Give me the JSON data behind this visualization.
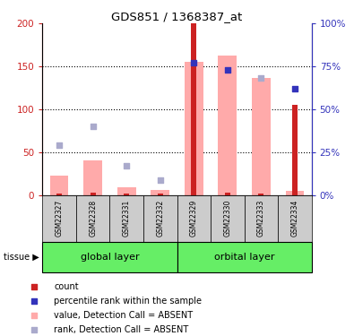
{
  "title": "GDS851 / 1368387_at",
  "samples": [
    "GSM22327",
    "GSM22328",
    "GSM22331",
    "GSM22332",
    "GSM22329",
    "GSM22330",
    "GSM22333",
    "GSM22334"
  ],
  "groups": [
    {
      "name": "global layer",
      "indices": [
        0,
        1,
        2,
        3
      ]
    },
    {
      "name": "orbital layer",
      "indices": [
        4,
        5,
        6,
        7
      ]
    }
  ],
  "red_bars": [
    2,
    3,
    2,
    2,
    200,
    3,
    2,
    105
  ],
  "pink_bars": [
    22,
    40,
    9,
    6,
    155,
    163,
    136,
    5
  ],
  "blue_squares_right": [
    null,
    null,
    null,
    null,
    77,
    73,
    null,
    62
  ],
  "light_blue_squares_left": [
    58,
    80,
    34,
    17,
    null,
    null,
    136,
    null
  ],
  "ylim_left": [
    0,
    200
  ],
  "ylim_right": [
    0,
    100
  ],
  "yticks_left": [
    0,
    50,
    100,
    150,
    200
  ],
  "yticks_right": [
    0,
    25,
    50,
    75,
    100
  ],
  "ytick_labels_left": [
    "0",
    "50",
    "100",
    "150",
    "200"
  ],
  "ytick_labels_right": [
    "0%",
    "25%",
    "50%",
    "75%",
    "100%"
  ],
  "red_color": "#cc2222",
  "pink_color": "#ffaaaa",
  "blue_color": "#3333bb",
  "light_blue_color": "#aaaacc",
  "group_bg_color": "#66ee66",
  "sample_bg_color": "#cccccc",
  "legend_items": [
    {
      "color": "#cc2222",
      "label": "count"
    },
    {
      "color": "#3333bb",
      "label": "percentile rank within the sample"
    },
    {
      "color": "#ffaaaa",
      "label": "value, Detection Call = ABSENT"
    },
    {
      "color": "#aaaacc",
      "label": "rank, Detection Call = ABSENT"
    }
  ],
  "tissue_label": "tissue",
  "figure_bg": "#ffffff"
}
